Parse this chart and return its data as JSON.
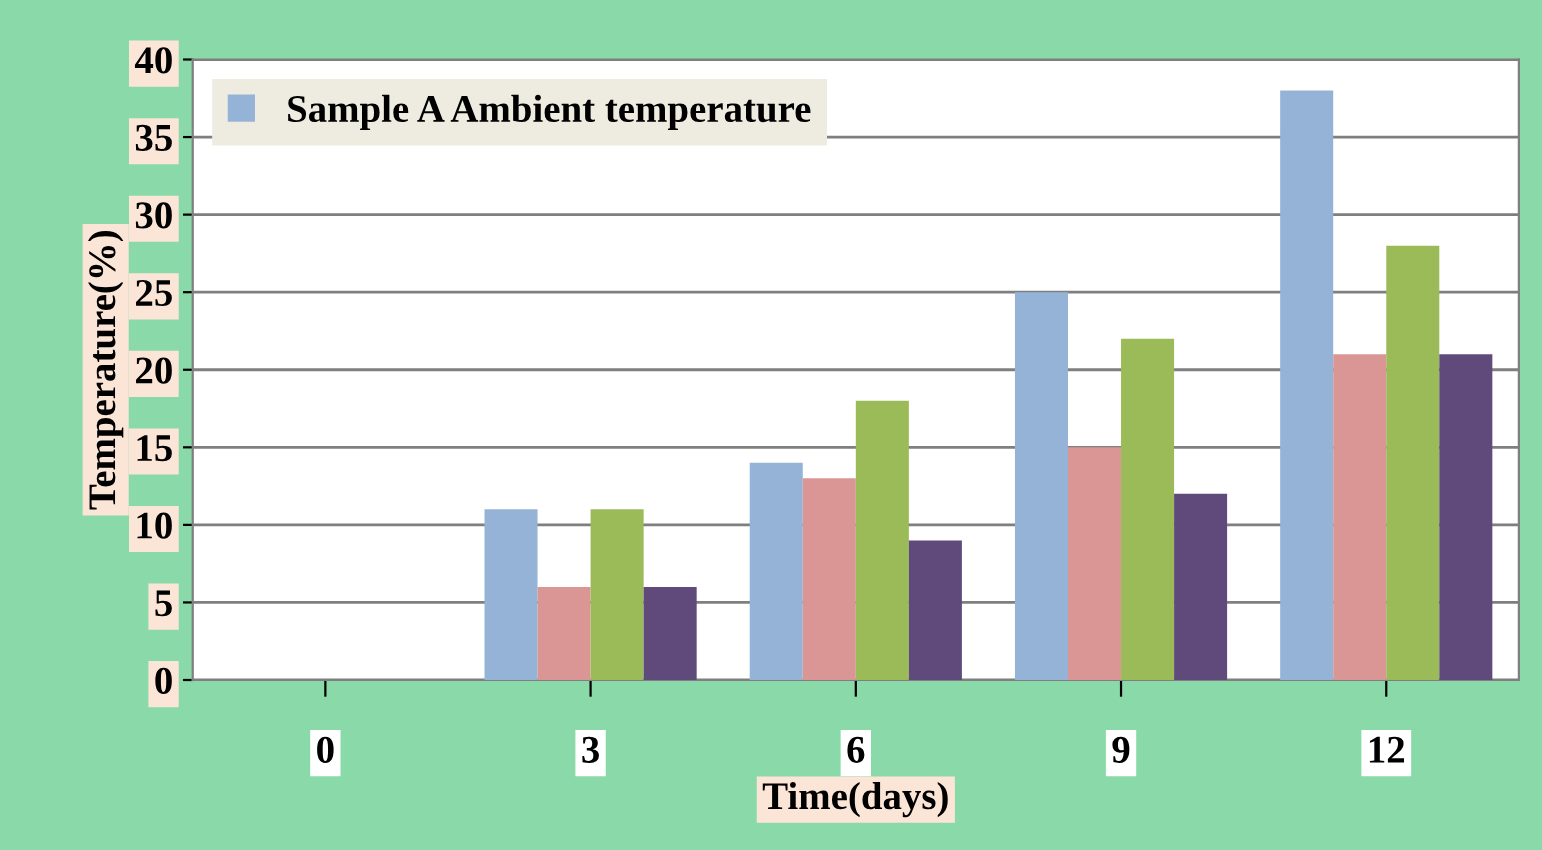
{
  "chart_data": {
    "type": "bar",
    "xlabel": "Time(days)",
    "ylabel": "Temperature(%)",
    "categories": [
      "0",
      "3",
      "6",
      "9",
      "12"
    ],
    "series": [
      {
        "name": "Sample A Ambient temperature",
        "color": "#95b3d7",
        "values": [
          0,
          11,
          14,
          25,
          38
        ]
      },
      {
        "color": "#d99694",
        "values": [
          0,
          6,
          13,
          15,
          21
        ]
      },
      {
        "color": "#9bbb59",
        "values": [
          0,
          11,
          18,
          22,
          28
        ]
      },
      {
        "color": "#604a7b",
        "values": [
          0,
          6,
          9,
          12,
          21
        ]
      }
    ],
    "ylim": [
      0,
      40
    ],
    "yticks": [
      0,
      5,
      10,
      15,
      20,
      25,
      30,
      35,
      40
    ],
    "grid": "y",
    "legend": "top left"
  }
}
